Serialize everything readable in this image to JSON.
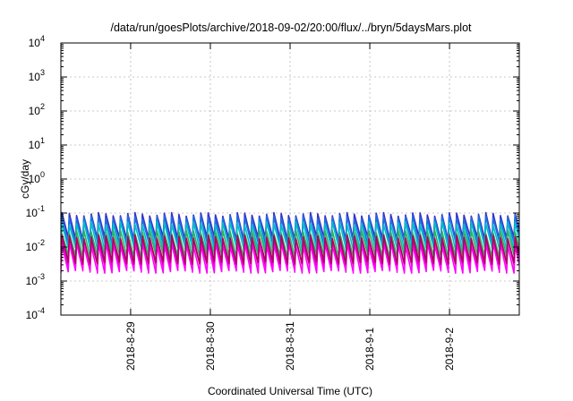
{
  "chart_data": {
    "type": "line",
    "title": "/data/run/goesPlots/archive/2018-09-02/20:00/flux/../bryn/5daysMars.plot",
    "xlabel": "Coordinated Universal Time (UTC)",
    "ylabel": "cGy/day",
    "yscale": "log",
    "ylim": [
      0.0001,
      10000
    ],
    "y_ticks": [
      {
        "base": "10",
        "exp": "-4"
      },
      {
        "base": "10",
        "exp": "-3"
      },
      {
        "base": "10",
        "exp": "-2"
      },
      {
        "base": "10",
        "exp": "-1"
      },
      {
        "base": "10",
        "exp": "0"
      },
      {
        "base": "10",
        "exp": "1"
      },
      {
        "base": "10",
        "exp": "2"
      },
      {
        "base": "10",
        "exp": "3"
      },
      {
        "base": "10",
        "exp": "4"
      }
    ],
    "xlim": [
      "2018-08-28 03:00",
      "2018-09-02 21:00"
    ],
    "x_ticks": [
      {
        "label": "2018-8-29",
        "value": "2018-08-29 00:00"
      },
      {
        "label": "2018-8-30",
        "value": "2018-08-30 00:00"
      },
      {
        "label": "2018-8-31",
        "value": "2018-08-31 00:00"
      },
      {
        "label": "2018-9-1",
        "value": "2018-09-01 00:00"
      },
      {
        "label": "2018-9-2",
        "value": "2018-09-02 00:00"
      }
    ],
    "grid": true,
    "legend": "none",
    "sawtooth_period_hours": 2.2,
    "series": [
      {
        "color": "#3a2fc8",
        "peak": 0.092,
        "trough": 0.018
      },
      {
        "color": "#1e6fe0",
        "peak": 0.075,
        "trough": 0.013
      },
      {
        "color": "#00bfc8",
        "peak": 0.05,
        "trough": 0.009
      },
      {
        "color": "#2fb060",
        "peak": 0.028,
        "trough": 0.0055
      },
      {
        "color": "#cc00aa",
        "peak": 0.017,
        "trough": 0.0028
      },
      {
        "color": "#ff00ff",
        "peak": 0.012,
        "trough": 0.0019
      },
      {
        "color": "#b00060",
        "peak": 0.02,
        "trough": 0.0035
      }
    ]
  }
}
